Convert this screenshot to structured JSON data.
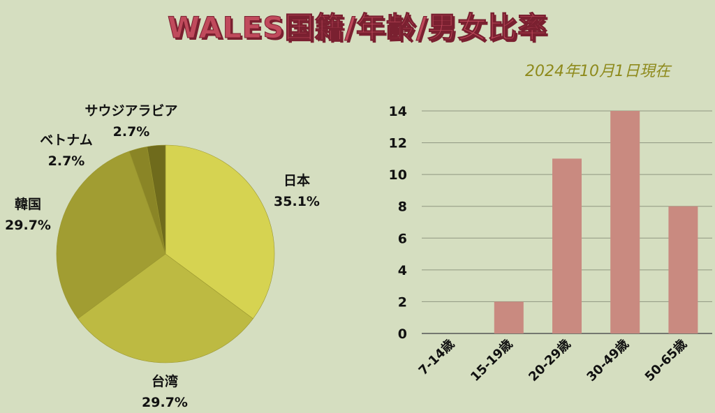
{
  "title": "WALES国籍/年齢/男女比率",
  "as_of": "2024年10月1日現在",
  "chart_data": [
    {
      "type": "pie",
      "slices": [
        {
          "label": "日本",
          "value": 35.1,
          "pct_label": "35.1%",
          "color": "#d6d351"
        },
        {
          "label": "台湾",
          "value": 29.7,
          "pct_label": "29.7%",
          "color": "#bdba42"
        },
        {
          "label": "韓国",
          "value": 29.7,
          "pct_label": "29.7%",
          "color": "#a19d32"
        },
        {
          "label": "ベトナム",
          "value": 2.7,
          "pct_label": "2.7%",
          "color": "#8a8526"
        },
        {
          "label": "サウジアラビア",
          "value": 2.7,
          "pct_label": "2.7%",
          "color": "#6f6b1c"
        }
      ]
    },
    {
      "type": "bar",
      "categories": [
        "7-14歳",
        "15-19歳",
        "20-29歳",
        "30-49歳",
        "50-65歳"
      ],
      "values": [
        0,
        2,
        11,
        14,
        8
      ],
      "ylim": [
        0,
        14
      ],
      "yticks": [
        "0",
        "2",
        "4",
        "6",
        "8",
        "10",
        "12",
        "14"
      ],
      "grid": true,
      "bar_color": "#c98a80"
    }
  ]
}
